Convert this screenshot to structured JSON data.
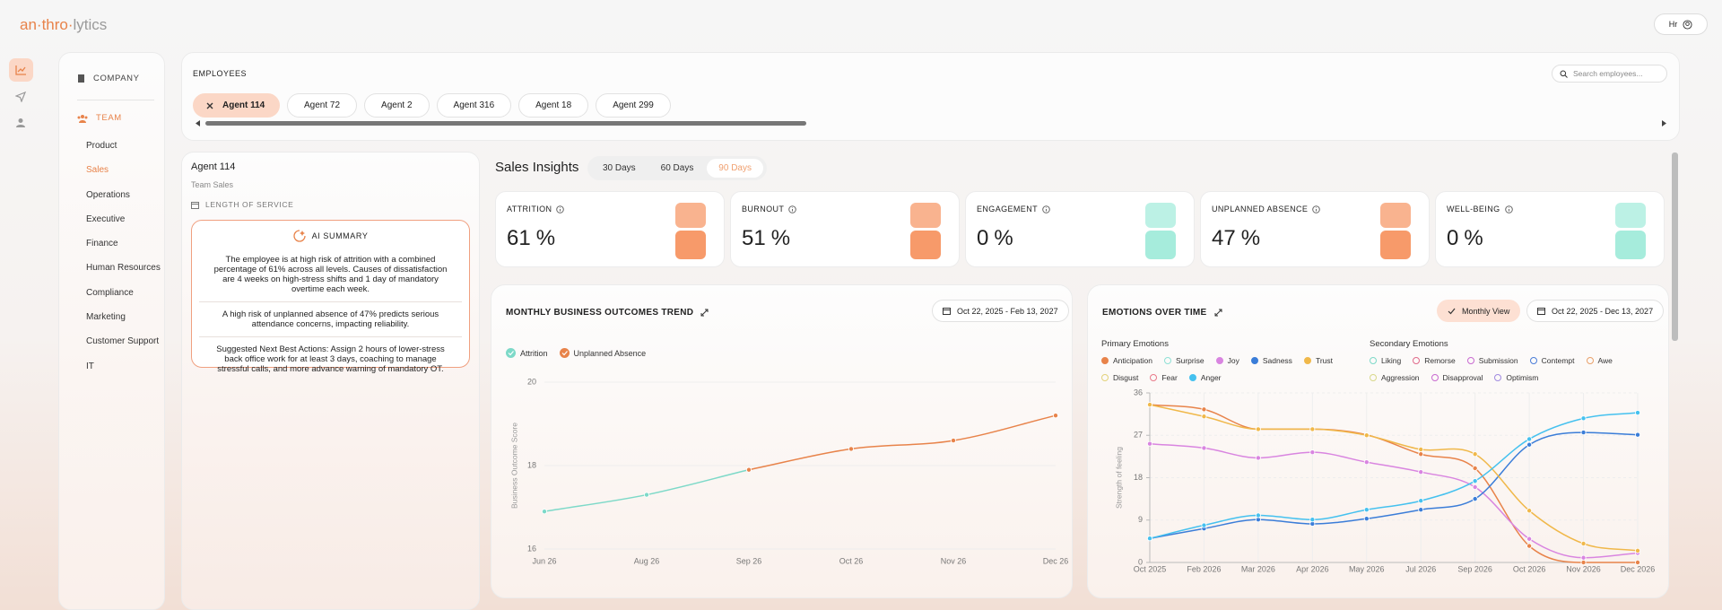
{
  "header": {
    "logo_accent": "an·thro·",
    "logo_rest": "lytics",
    "user": "Hr"
  },
  "sidebar": {
    "company": "COMPANY",
    "team": "TEAM",
    "items": [
      "Product",
      "Sales",
      "Operations",
      "Executive",
      "Finance",
      "Human Resources",
      "Compliance",
      "Marketing",
      "Customer Support",
      "IT"
    ],
    "active": "Sales"
  },
  "employees": {
    "title": "EMPLOYEES",
    "search_placeholder": "Search employees...",
    "chips": [
      "Agent 114",
      "Agent 72",
      "Agent 2",
      "Agent 316",
      "Agent 18",
      "Agent 299"
    ],
    "selected": "Agent 114"
  },
  "profile": {
    "name": "Agent 114",
    "team": "Team Sales",
    "length_of_service": "LENGTH OF SERVICE",
    "ai_summary_title": "AI SUMMARY",
    "ai_summary": [
      "The employee is at high risk of attrition with a combined percentage of 61% across all levels. Causes of dissatisfaction are 4 weeks on high-stress shifts and 1 day of mandatory overtime each week.",
      "A high risk of unplanned absence of 47% predicts serious attendance concerns, impacting reliability.",
      "Suggested Next Best Actions: Assign 2 hours of lower-stress back office work for at least 3 days, coaching to manage stressful calls, and more advance warning of mandatory OT."
    ]
  },
  "insights": {
    "title": "Sales Insights",
    "ranges": [
      "30 Days",
      "60 Days",
      "90 Days"
    ],
    "active_range": "90 Days",
    "kpis": [
      {
        "label": "ATTRITION",
        "value": 61,
        "unit": "%",
        "color": "#f79a6a"
      },
      {
        "label": "BURNOUT",
        "value": 51,
        "unit": "%",
        "color": "#f79a6a"
      },
      {
        "label": "ENGAGEMENT",
        "value": 0,
        "unit": "%",
        "color": "#a6ecdc"
      },
      {
        "label": "UNPLANNED ABSENCE",
        "value": 47,
        "unit": "%",
        "color": "#f79a6a"
      },
      {
        "label": "WELL-BEING",
        "value": 0,
        "unit": "%",
        "color": "#a6ecdc"
      }
    ]
  },
  "chart_data": [
    {
      "type": "line",
      "title": "MONTHLY BUSINESS OUTCOMES TREND",
      "date_range": "Oct 22, 2025 - Feb 13, 2027",
      "y_label": "Business Outcome Score",
      "categories": [
        "Jun 26",
        "Aug 26",
        "Sep 26",
        "Oct 26",
        "Nov 26",
        "Dec 26"
      ],
      "series": [
        {
          "name": "Attrition",
          "color": "#7dd9c8",
          "values": [
            16.9,
            17.3,
            17.9,
            null,
            null,
            null
          ]
        },
        {
          "name": "Unplanned Absence",
          "color": "#e8834a",
          "values": [
            null,
            null,
            17.9,
            18.4,
            18.6,
            19.2
          ]
        }
      ],
      "ylim": [
        16,
        20
      ],
      "yticks": [
        16,
        18,
        20
      ],
      "grid": true
    },
    {
      "type": "line",
      "title": "EMOTIONS OVER TIME",
      "view": "Monthly View",
      "date_range": "Oct 22, 2025 - Dec 13, 2027",
      "y_label": "Strength of feeling",
      "primary_title": "Primary Emotions",
      "secondary_title": "Secondary Emotions",
      "categories": [
        "Oct 2025",
        "Feb 2026",
        "Mar 2026",
        "Apr 2026",
        "May 2026",
        "Jul 2026",
        "Sep 2026",
        "Oct 2026",
        "Nov 2026",
        "Dec 2026"
      ],
      "series": [
        {
          "name": "Anticipation",
          "color": "#e8834a",
          "values": [
            33.5,
            32.5,
            28.3,
            28.3,
            27.1,
            23,
            20,
            3.5,
            0,
            0
          ]
        },
        {
          "name": "Surprise",
          "color": "#8fe0d6"
        },
        {
          "name": "Joy",
          "color": "#d985e0",
          "values": [
            25.2,
            24.3,
            22.2,
            23.4,
            21.3,
            19.2,
            16,
            5,
            1,
            2
          ]
        },
        {
          "name": "Sadness",
          "color": "#3b7dd8",
          "values": [
            5.1,
            7.2,
            9.1,
            8.2,
            9.3,
            11.2,
            13.5,
            25,
            27.6,
            27.1
          ]
        },
        {
          "name": "Trust",
          "color": "#f0b84a",
          "values": [
            33.5,
            31,
            28.3,
            28.3,
            27,
            24,
            23,
            11,
            4,
            2.5
          ]
        },
        {
          "name": "Disgust",
          "color": "#e3d27a"
        },
        {
          "name": "Fear",
          "color": "#e87a8a"
        },
        {
          "name": "Anger",
          "color": "#45c1ef",
          "values": [
            5.1,
            7.9,
            10,
            9.1,
            11.2,
            13.1,
            17.3,
            26.2,
            30.6,
            31.8
          ]
        }
      ],
      "secondary_series": [
        {
          "name": "Liking",
          "color": "#7dd9c8"
        },
        {
          "name": "Remorse",
          "color": "#e06a8a"
        },
        {
          "name": "Submission",
          "color": "#c86ad0"
        },
        {
          "name": "Contempt",
          "color": "#4a7dd8"
        },
        {
          "name": "Awe",
          "color": "#e8a06a"
        },
        {
          "name": "Aggression",
          "color": "#d8d88a"
        },
        {
          "name": "Disapproval",
          "color": "#c86ad0"
        },
        {
          "name": "Optimism",
          "color": "#a08ae0"
        }
      ],
      "ylim": [
        0,
        36
      ],
      "yticks": [
        0,
        9,
        18,
        27,
        36
      ],
      "grid": true
    }
  ]
}
